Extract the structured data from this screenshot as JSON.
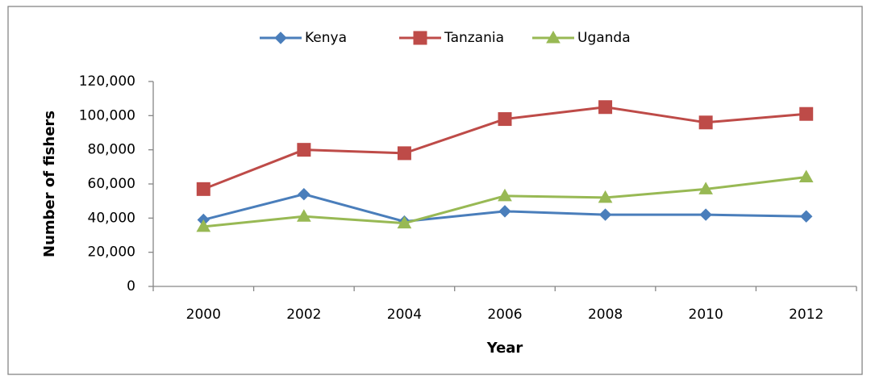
{
  "chart_data": {
    "type": "line",
    "x_label": "Year",
    "y_label": "Number of fishers",
    "categories": [
      "2000",
      "2002",
      "2004",
      "2006",
      "2008",
      "2010",
      "2012"
    ],
    "series": [
      {
        "name": "Kenya",
        "color": "#4a7ebb",
        "marker": "diamond",
        "values": [
          39000,
          54000,
          38000,
          44000,
          42000,
          42000,
          41000
        ]
      },
      {
        "name": "Tanzania",
        "color": "#be4b48",
        "marker": "square",
        "values": [
          57000,
          80000,
          78000,
          98000,
          105000,
          96000,
          101000
        ]
      },
      {
        "name": "Uganda",
        "color": "#98b954",
        "marker": "triangle",
        "values": [
          35000,
          41000,
          37000,
          53000,
          52000,
          57000,
          64000
        ]
      }
    ],
    "ylim": [
      0,
      120000
    ],
    "yticks": [
      0,
      {
        "value": 20000,
        "label": "20,000"
      },
      {
        "value": 40000,
        "label": "40,000"
      },
      {
        "value": 60000,
        "label": "60,000"
      },
      {
        "value": 80000,
        "label": "80,000"
      },
      {
        "value": 100000,
        "label": "100,000"
      },
      {
        "value": 120000,
        "label": "120,000"
      }
    ],
    "legend": "top",
    "grid": false
  }
}
